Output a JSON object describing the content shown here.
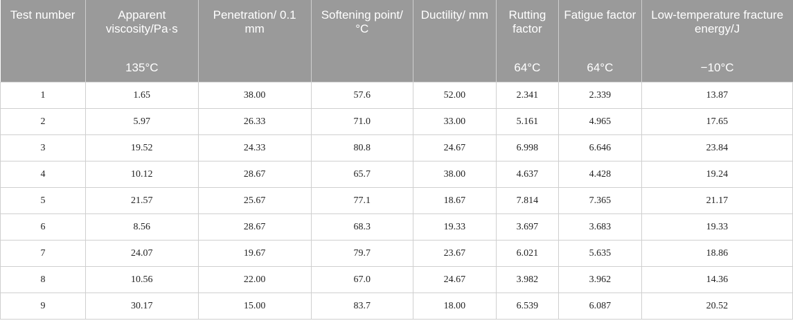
{
  "headers": [
    "Test number",
    "Apparent viscosity/Pa·s",
    "Penetration/ 0.1 mm",
    "Softening point/°C",
    "Ductility/ mm",
    "Rutting factor",
    "Fatigue factor",
    "Low-temperature fracture energy/J"
  ],
  "subheaders": [
    "",
    "135°C",
    "",
    "",
    "",
    "64°C",
    "64°C",
    "−10°C"
  ],
  "rows": [
    [
      "1",
      "1.65",
      "38.00",
      "57.6",
      "52.00",
      "2.341",
      "2.339",
      "13.87"
    ],
    [
      "2",
      "5.97",
      "26.33",
      "71.0",
      "33.00",
      "5.161",
      "4.965",
      "17.65"
    ],
    [
      "3",
      "19.52",
      "24.33",
      "80.8",
      "24.67",
      "6.998",
      "6.646",
      "23.84"
    ],
    [
      "4",
      "10.12",
      "28.67",
      "65.7",
      "38.00",
      "4.637",
      "4.428",
      "19.24"
    ],
    [
      "5",
      "21.57",
      "25.67",
      "77.1",
      "18.67",
      "7.814",
      "7.365",
      "21.17"
    ],
    [
      "6",
      "8.56",
      "28.67",
      "68.3",
      "19.33",
      "3.697",
      "3.683",
      "19.33"
    ],
    [
      "7",
      "24.07",
      "19.67",
      "79.7",
      "23.67",
      "6.021",
      "5.635",
      "18.86"
    ],
    [
      "8",
      "10.56",
      "22.00",
      "67.0",
      "24.67",
      "3.982",
      "3.962",
      "14.36"
    ],
    [
      "9",
      "30.17",
      "15.00",
      "83.7",
      "18.00",
      "6.539",
      "6.087",
      "20.52"
    ]
  ]
}
